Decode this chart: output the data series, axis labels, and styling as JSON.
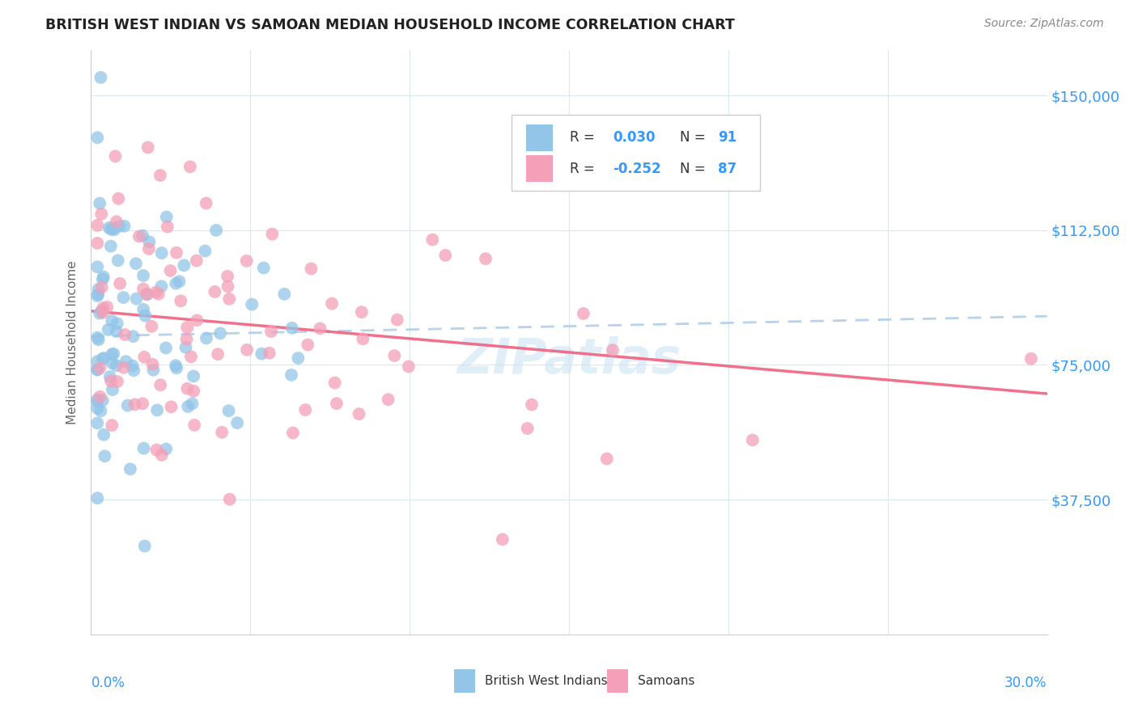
{
  "title": "BRITISH WEST INDIAN VS SAMOAN MEDIAN HOUSEHOLD INCOME CORRELATION CHART",
  "source": "Source: ZipAtlas.com",
  "ylabel": "Median Household Income",
  "ytick_labels": [
    "$37,500",
    "$75,000",
    "$112,500",
    "$150,000"
  ],
  "ytick_values": [
    37500,
    75000,
    112500,
    150000
  ],
  "ymin": 0,
  "ymax": 162500,
  "xmin": 0.0,
  "xmax": 0.3,
  "color_blue": "#92C5E8",
  "color_pink": "#F4A0B8",
  "trendline_blue_color": "#B0CDE8",
  "trendline_pink_color": "#F06080",
  "footer_label1": "British West Indians",
  "footer_label2": "Samoans",
  "watermark": "ZIPatlas",
  "r1": 0.03,
  "r2": -0.252,
  "n1": 91,
  "n2": 87
}
